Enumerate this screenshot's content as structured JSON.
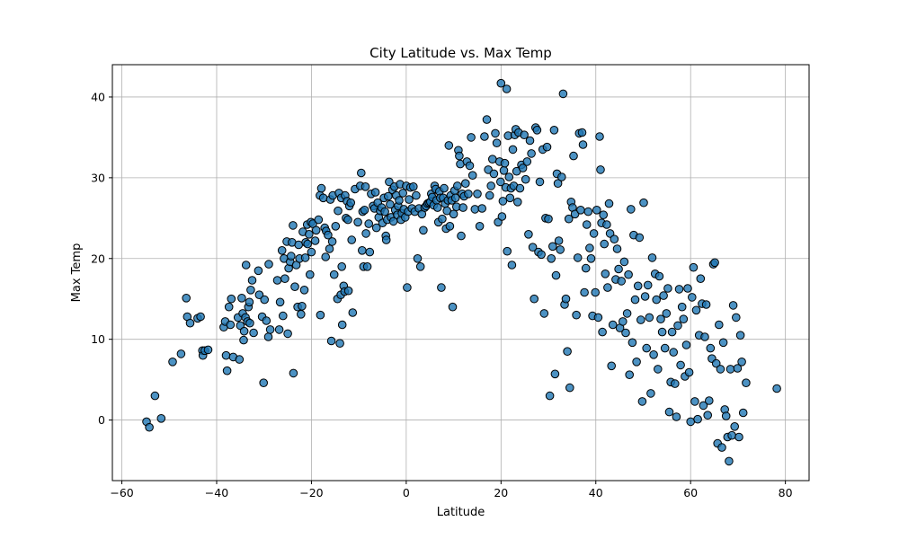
{
  "chart_data": {
    "type": "scatter",
    "title": "City Latitude vs. Max Temp",
    "xlabel": "Latitude",
    "ylabel": "Max Temp",
    "xlim": [
      -62,
      85
    ],
    "ylim": [
      -7.5,
      44
    ],
    "xticks": [
      -60,
      -40,
      -20,
      0,
      20,
      40,
      60,
      80
    ],
    "yticks": [
      0,
      10,
      20,
      30,
      40
    ],
    "grid": true,
    "color": "#1f77b4",
    "edge_color": "#000000",
    "points": [
      [
        -54.8,
        -0.2
      ],
      [
        -54.2,
        -0.9
      ],
      [
        -53,
        3
      ],
      [
        -51.7,
        0.2
      ],
      [
        -49.3,
        7.2
      ],
      [
        -47.5,
        8.2
      ],
      [
        -46.4,
        15.1
      ],
      [
        -46.2,
        12.8
      ],
      [
        -45.6,
        12
      ],
      [
        -44,
        12.6
      ],
      [
        -43.4,
        12.8
      ],
      [
        -43,
        8.6
      ],
      [
        -42.9,
        8
      ],
      [
        -42.5,
        8.6
      ],
      [
        -41.8,
        8.7
      ],
      [
        -38.5,
        11.5
      ],
      [
        -38.2,
        12.2
      ],
      [
        -38,
        8
      ],
      [
        -37.8,
        6.1
      ],
      [
        -37.4,
        14
      ],
      [
        -36.9,
        15
      ],
      [
        -37.1,
        11.8
      ],
      [
        -36.5,
        7.8
      ],
      [
        -35.5,
        12.7
      ],
      [
        -35.2,
        7.5
      ],
      [
        -35,
        11.7
      ],
      [
        -34.7,
        15.1
      ],
      [
        -34.5,
        13.2
      ],
      [
        -34.3,
        9.9
      ],
      [
        -34.2,
        11
      ],
      [
        -33.9,
        12.7
      ],
      [
        -33.8,
        19.2
      ],
      [
        -33.5,
        12.2
      ],
      [
        -33.3,
        14
      ],
      [
        -33,
        12
      ],
      [
        -33.1,
        14.6
      ],
      [
        -32.8,
        16.1
      ],
      [
        -32.5,
        17.3
      ],
      [
        -32.2,
        10.8
      ],
      [
        -31.2,
        18.5
      ],
      [
        -31,
        15.5
      ],
      [
        -30.4,
        12.8
      ],
      [
        -30.1,
        4.6
      ],
      [
        -29.9,
        14.9
      ],
      [
        -29.5,
        12.3
      ],
      [
        -29,
        19.3
      ],
      [
        -29.1,
        10.3
      ],
      [
        -28.7,
        11.2
      ],
      [
        -27.2,
        17.3
      ],
      [
        -26.8,
        11.2
      ],
      [
        -26.6,
        14.6
      ],
      [
        -26.2,
        21
      ],
      [
        -26,
        12.9
      ],
      [
        -25.8,
        20
      ],
      [
        -25.6,
        17.5
      ],
      [
        -25.2,
        22.1
      ],
      [
        -25,
        10.7
      ],
      [
        -24.8,
        18.8
      ],
      [
        -24.5,
        19.6
      ],
      [
        -24.3,
        20.3
      ],
      [
        -24.1,
        22
      ],
      [
        -23.9,
        24.1
      ],
      [
        -23.8,
        5.8
      ],
      [
        -23.5,
        16.5
      ],
      [
        -23.2,
        19.2
      ],
      [
        -22.9,
        14
      ],
      [
        -22.7,
        21.7
      ],
      [
        -22.5,
        20
      ],
      [
        -22.2,
        13.1
      ],
      [
        -22,
        14.1
      ],
      [
        -21.8,
        23.3
      ],
      [
        -21.5,
        16.1
      ],
      [
        -21.3,
        20.1
      ],
      [
        -21.2,
        22
      ],
      [
        -20.9,
        24.2
      ],
      [
        -20.8,
        21.8
      ],
      [
        -20.5,
        23
      ],
      [
        -20.3,
        18
      ],
      [
        -20.1,
        24.5
      ],
      [
        -20,
        20.8
      ],
      [
        -19.7,
        24.3
      ],
      [
        -19.2,
        22.2
      ],
      [
        -19,
        23.5
      ],
      [
        -18.5,
        24.8
      ],
      [
        -18.1,
        13
      ],
      [
        -18.2,
        27.8
      ],
      [
        -17.9,
        28.7
      ],
      [
        -17.5,
        27.5
      ],
      [
        -17.2,
        23.8
      ],
      [
        -17,
        20.2
      ],
      [
        -16.9,
        23.4
      ],
      [
        -16.5,
        22.9
      ],
      [
        -16.2,
        21.2
      ],
      [
        -16,
        27.3
      ],
      [
        -15.8,
        9.8
      ],
      [
        -15.6,
        22.1
      ],
      [
        -15.5,
        27.8
      ],
      [
        -15.2,
        18
      ],
      [
        -14.9,
        24
      ],
      [
        -14.5,
        15
      ],
      [
        -14.4,
        25.9
      ],
      [
        -14.2,
        28.1
      ],
      [
        -14,
        9.5
      ],
      [
        -13.8,
        15.5
      ],
      [
        -13.7,
        27.5
      ],
      [
        -13.6,
        19
      ],
      [
        -13.5,
        11.8
      ],
      [
        -13.2,
        16.6
      ],
      [
        -13,
        15.9
      ],
      [
        -12.9,
        27.8
      ],
      [
        -12.7,
        25
      ],
      [
        -12.5,
        27.1
      ],
      [
        -12.3,
        24.8
      ],
      [
        -12.2,
        16
      ],
      [
        -12,
        26.5
      ],
      [
        -11.7,
        26.9
      ],
      [
        -11.5,
        22.3
      ],
      [
        -11.3,
        13.3
      ],
      [
        -10.8,
        28.6
      ],
      [
        -10.2,
        24.5
      ],
      [
        -9.7,
        29
      ],
      [
        -9.5,
        30.6
      ],
      [
        -9.3,
        21
      ],
      [
        -9.2,
        25.8
      ],
      [
        -9,
        19
      ],
      [
        -8.8,
        26
      ],
      [
        -8.6,
        28.9
      ],
      [
        -8.5,
        23.1
      ],
      [
        -8.2,
        19
      ],
      [
        -7.9,
        24.3
      ],
      [
        -7.7,
        20.8
      ],
      [
        -7.4,
        28
      ],
      [
        -7,
        26.5
      ],
      [
        -6.7,
        26.2
      ],
      [
        -6.5,
        28.2
      ],
      [
        -6.3,
        23.8
      ],
      [
        -6,
        26.9
      ],
      [
        -5.8,
        25.1
      ],
      [
        -5.5,
        25.9
      ],
      [
        -5.2,
        26.3
      ],
      [
        -5,
        24.4
      ],
      [
        -4.7,
        27.5
      ],
      [
        -4.5,
        25.8
      ],
      [
        -4.3,
        22.8
      ],
      [
        -4.2,
        22.3
      ],
      [
        -4,
        24.8
      ],
      [
        -3.8,
        27.7
      ],
      [
        -3.6,
        29.5
      ],
      [
        -3.4,
        26.7
      ],
      [
        -3.2,
        25.1
      ],
      [
        -2.9,
        28.5
      ],
      [
        -2.7,
        24.6
      ],
      [
        -2.5,
        28.9
      ],
      [
        -2.3,
        26
      ],
      [
        -2.1,
        27.8
      ],
      [
        -1.9,
        25.4
      ],
      [
        -1.7,
        26.5
      ],
      [
        -1.5,
        27.2
      ],
      [
        -1.3,
        29.2
      ],
      [
        -1.1,
        24.8
      ],
      [
        -0.9,
        25.6
      ],
      [
        -0.7,
        28.1
      ],
      [
        -0.5,
        26.1
      ],
      [
        -0.2,
        25.1
      ],
      [
        0,
        29
      ],
      [
        0.2,
        16.4
      ],
      [
        0.4,
        25.8
      ],
      [
        0.6,
        27.3
      ],
      [
        0.9,
        28.8
      ],
      [
        1.2,
        26.2
      ],
      [
        1.5,
        28.9
      ],
      [
        1.8,
        25.8
      ],
      [
        2.1,
        27.8
      ],
      [
        2.4,
        20
      ],
      [
        2.7,
        26.2
      ],
      [
        3,
        19
      ],
      [
        3.3,
        25.5
      ],
      [
        3.6,
        23.5
      ],
      [
        3.9,
        26.3
      ],
      [
        4.2,
        26.5
      ],
      [
        4.5,
        26.8
      ],
      [
        4.8,
        26.9
      ],
      [
        5.1,
        27
      ],
      [
        5.3,
        28
      ],
      [
        5.5,
        27.6
      ],
      [
        5.8,
        26.6
      ],
      [
        6,
        29
      ],
      [
        6.2,
        28.6
      ],
      [
        6.4,
        27.2
      ],
      [
        6.6,
        26.3
      ],
      [
        6.8,
        24.5
      ],
      [
        7,
        28.3
      ],
      [
        7.2,
        27.5
      ],
      [
        7.4,
        16.4
      ],
      [
        7.6,
        24.9
      ],
      [
        7.8,
        27.5
      ],
      [
        8,
        28.7
      ],
      [
        8.2,
        26.8
      ],
      [
        8.4,
        23.7
      ],
      [
        8.6,
        25.9
      ],
      [
        8.8,
        27.2
      ],
      [
        9,
        34
      ],
      [
        9.2,
        24
      ],
      [
        9.4,
        27.8
      ],
      [
        9.6,
        27.2
      ],
      [
        9.8,
        14
      ],
      [
        10,
        25.5
      ],
      [
        10.2,
        28.4
      ],
      [
        10.4,
        27.5
      ],
      [
        10.6,
        26.4
      ],
      [
        10.8,
        29
      ],
      [
        11,
        33.4
      ],
      [
        11.2,
        32.7
      ],
      [
        11.4,
        31.7
      ],
      [
        11.6,
        22.8
      ],
      [
        11.8,
        28
      ],
      [
        12,
        26.3
      ],
      [
        12.2,
        27.7
      ],
      [
        12.5,
        29.3
      ],
      [
        12.8,
        32
      ],
      [
        13.1,
        28
      ],
      [
        13.4,
        31.5
      ],
      [
        13.7,
        35
      ],
      [
        14,
        30.3
      ],
      [
        14.5,
        26.1
      ],
      [
        15,
        28
      ],
      [
        15.5,
        24
      ],
      [
        16,
        26.2
      ],
      [
        16.5,
        35.1
      ],
      [
        17,
        37.2
      ],
      [
        17.3,
        31
      ],
      [
        17.6,
        27.8
      ],
      [
        17.9,
        29
      ],
      [
        18.2,
        32.3
      ],
      [
        18.5,
        30.5
      ],
      [
        18.8,
        35.5
      ],
      [
        19.1,
        34.3
      ],
      [
        19.4,
        24.5
      ],
      [
        19.7,
        32
      ],
      [
        19.9,
        29.5
      ],
      [
        20,
        41.7
      ],
      [
        20.2,
        25.2
      ],
      [
        20.4,
        27.1
      ],
      [
        20.6,
        30.9
      ],
      [
        20.8,
        31.8
      ],
      [
        21,
        28.8
      ],
      [
        21.2,
        41
      ],
      [
        21.3,
        20.9
      ],
      [
        21.5,
        35.2
      ],
      [
        21.7,
        30.1
      ],
      [
        21.9,
        27.5
      ],
      [
        22.1,
        28.7
      ],
      [
        22.3,
        19.2
      ],
      [
        22.5,
        33.5
      ],
      [
        22.7,
        29
      ],
      [
        22.9,
        35.3
      ],
      [
        23.1,
        36
      ],
      [
        23.3,
        30.8
      ],
      [
        23.5,
        27
      ],
      [
        23.7,
        35.6
      ],
      [
        24,
        28.7
      ],
      [
        24.3,
        31.6
      ],
      [
        24.6,
        31.2
      ],
      [
        24.9,
        35.3
      ],
      [
        25.2,
        29.8
      ],
      [
        25.5,
        32
      ],
      [
        25.8,
        23
      ],
      [
        26.1,
        34.6
      ],
      [
        26.4,
        33
      ],
      [
        26.7,
        21.4
      ],
      [
        27,
        15
      ],
      [
        27.3,
        36.2
      ],
      [
        27.6,
        35.9
      ],
      [
        27.9,
        20.8
      ],
      [
        28.2,
        29.5
      ],
      [
        28.5,
        20.5
      ],
      [
        28.8,
        33.5
      ],
      [
        29.1,
        13.2
      ],
      [
        29.4,
        25
      ],
      [
        29.7,
        33.8
      ],
      [
        30,
        24.9
      ],
      [
        30.3,
        3
      ],
      [
        30.6,
        20
      ],
      [
        30.9,
        21.5
      ],
      [
        31.2,
        35.9
      ],
      [
        31.4,
        5.7
      ],
      [
        31.6,
        17.9
      ],
      [
        31.8,
        30.5
      ],
      [
        32,
        29.3
      ],
      [
        32.2,
        22.2
      ],
      [
        32.5,
        21.1
      ],
      [
        32.8,
        30.1
      ],
      [
        33.1,
        40.4
      ],
      [
        33.4,
        14.3
      ],
      [
        33.7,
        15
      ],
      [
        34,
        8.5
      ],
      [
        34.3,
        24.9
      ],
      [
        34.5,
        4
      ],
      [
        34.8,
        27
      ],
      [
        35.1,
        26.3
      ],
      [
        35.3,
        32.7
      ],
      [
        35.6,
        25.5
      ],
      [
        35.9,
        13
      ],
      [
        36.2,
        20.1
      ],
      [
        36.5,
        35.5
      ],
      [
        36.8,
        26
      ],
      [
        37.1,
        35.6
      ],
      [
        37.3,
        34.1
      ],
      [
        37.6,
        15.8
      ],
      [
        37.9,
        18.8
      ],
      [
        38.1,
        24.2
      ],
      [
        38.4,
        25.8
      ],
      [
        38.7,
        21.3
      ],
      [
        39,
        20
      ],
      [
        39.3,
        12.9
      ],
      [
        39.6,
        23.1
      ],
      [
        39.9,
        15.8
      ],
      [
        40.2,
        26
      ],
      [
        40.5,
        12.7
      ],
      [
        40.8,
        35.1
      ],
      [
        41,
        31
      ],
      [
        41.2,
        24.4
      ],
      [
        41.4,
        10.9
      ],
      [
        41.6,
        25.4
      ],
      [
        41.8,
        21.8
      ],
      [
        42,
        18.1
      ],
      [
        42.3,
        24.2
      ],
      [
        42.5,
        16.4
      ],
      [
        42.8,
        26.8
      ],
      [
        43,
        23.1
      ],
      [
        43.3,
        6.7
      ],
      [
        43.6,
        11.8
      ],
      [
        43.9,
        22.4
      ],
      [
        44.2,
        17.4
      ],
      [
        44.5,
        21.2
      ],
      [
        44.8,
        18.7
      ],
      [
        45.1,
        11.4
      ],
      [
        45.4,
        17.2
      ],
      [
        45.7,
        12.2
      ],
      [
        46,
        19.6
      ],
      [
        46.3,
        10.8
      ],
      [
        46.6,
        13.2
      ],
      [
        46.9,
        18
      ],
      [
        47.1,
        5.6
      ],
      [
        47.4,
        26.1
      ],
      [
        47.7,
        9.6
      ],
      [
        48,
        22.9
      ],
      [
        48.3,
        14.9
      ],
      [
        48.6,
        7.2
      ],
      [
        48.9,
        16.6
      ],
      [
        49.2,
        22.6
      ],
      [
        49.5,
        12.4
      ],
      [
        49.8,
        2.3
      ],
      [
        50.1,
        26.9
      ],
      [
        50.4,
        15.3
      ],
      [
        50.7,
        8.9
      ],
      [
        51,
        16.7
      ],
      [
        51.3,
        12.7
      ],
      [
        51.6,
        3.3
      ],
      [
        51.9,
        20.1
      ],
      [
        52.2,
        8.1
      ],
      [
        52.5,
        18.1
      ],
      [
        52.8,
        14.9
      ],
      [
        53.1,
        6.3
      ],
      [
        53.4,
        17.8
      ],
      [
        53.7,
        12.5
      ],
      [
        54,
        10.9
      ],
      [
        54.3,
        15.4
      ],
      [
        54.6,
        8.9
      ],
      [
        54.9,
        13.2
      ],
      [
        55.2,
        16.3
      ],
      [
        55.5,
        1
      ],
      [
        55.8,
        4.7
      ],
      [
        56.1,
        10.9
      ],
      [
        56.4,
        8.4
      ],
      [
        56.7,
        4.5
      ],
      [
        57,
        0.4
      ],
      [
        57.3,
        11.7
      ],
      [
        57.6,
        16.2
      ],
      [
        57.9,
        6.8
      ],
      [
        58.2,
        14
      ],
      [
        58.5,
        12.5
      ],
      [
        58.8,
        5.4
      ],
      [
        59.1,
        9.3
      ],
      [
        59.4,
        16.3
      ],
      [
        59.7,
        5.9
      ],
      [
        60,
        -0.2
      ],
      [
        60.3,
        15.2
      ],
      [
        60.6,
        18.9
      ],
      [
        60.9,
        2.3
      ],
      [
        61.2,
        13.6
      ],
      [
        61.5,
        0.1
      ],
      [
        61.8,
        10.5
      ],
      [
        62.1,
        17.5
      ],
      [
        62.4,
        14.4
      ],
      [
        62.7,
        1.8
      ],
      [
        63,
        10.3
      ],
      [
        63.3,
        14.3
      ],
      [
        63.6,
        0.6
      ],
      [
        63.9,
        2.4
      ],
      [
        64.2,
        8.9
      ],
      [
        64.5,
        7.6
      ],
      [
        64.8,
        19.3
      ],
      [
        65.1,
        19.5
      ],
      [
        65.4,
        7
      ],
      [
        65.7,
        -2.9
      ],
      [
        66,
        11.8
      ],
      [
        66.3,
        6.3
      ],
      [
        66.6,
        -3.4
      ],
      [
        66.9,
        9.6
      ],
      [
        67.2,
        1.3
      ],
      [
        67.5,
        0.5
      ],
      [
        67.8,
        -2.1
      ],
      [
        68.1,
        -5.1
      ],
      [
        68.4,
        6.3
      ],
      [
        68.7,
        -1.9
      ],
      [
        69,
        14.2
      ],
      [
        69.3,
        -0.8
      ],
      [
        69.6,
        12.7
      ],
      [
        69.9,
        6.4
      ],
      [
        70.2,
        -2.1
      ],
      [
        70.5,
        10.5
      ],
      [
        70.8,
        7.2
      ],
      [
        71.1,
        0.9
      ],
      [
        71.7,
        4.6
      ],
      [
        78.2,
        3.9
      ]
    ]
  }
}
